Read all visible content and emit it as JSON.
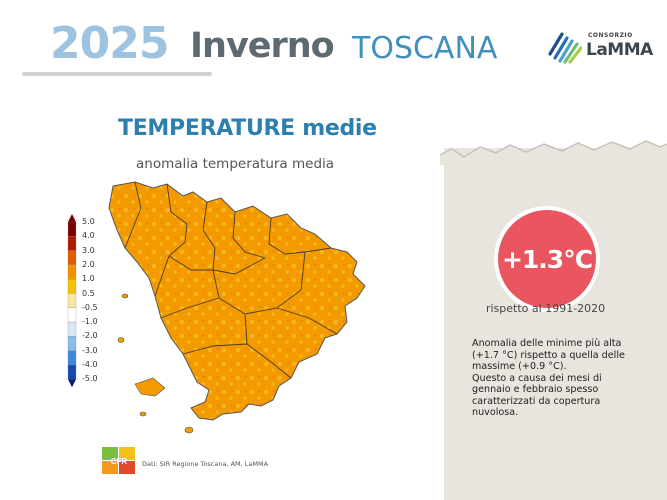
{
  "header": {
    "year": "2025",
    "season": "Inverno",
    "region": "TOSCANA",
    "logo": {
      "top_text": "CONSORZIO",
      "main_text": "LaMMA"
    }
  },
  "left_panel": {
    "title": "TEMPERATURE medie",
    "subtitle": "anomalia temperatura media",
    "scale_labels": [
      "5.0",
      "4.0",
      "3.0",
      "2.0",
      "1.0",
      "0.5",
      "-0.5",
      "-1.0",
      "-2.0",
      "-3.0",
      "-4.0",
      "-5.0"
    ],
    "scale_colors": [
      "#7a0000",
      "#b11a00",
      "#e25c00",
      "#f39200",
      "#f6c200",
      "#fbe7a0",
      "#ffffff",
      "#d6e8f7",
      "#88bde9",
      "#3c8bd9",
      "#1748b0",
      "#0a1f7a"
    ],
    "source": "Dati: SIR Regione Toscana, AM, LaMMA",
    "cfr_logo_text": "CFR"
  },
  "right_panel": {
    "anomaly_value": "+1.3°C",
    "reference": "rispetto al 1991-2020",
    "description_lines": [
      "Anomalia delle minime più alta",
      "(+1.7 °C) rispetto a quella delle",
      "massime (+0.9 °C).",
      "Questo a causa dei mesi di",
      "gennaio e febbraio spesso",
      "caratterizzati da copertura",
      "nuvolosa."
    ],
    "accent_color": "#e9565f"
  }
}
